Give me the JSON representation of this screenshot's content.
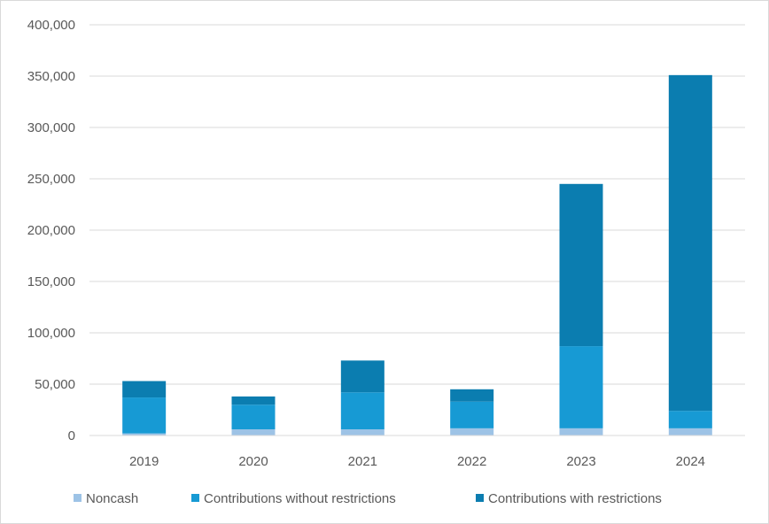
{
  "chart_data": {
    "type": "bar",
    "stacked": true,
    "categories": [
      "2019",
      "2020",
      "2021",
      "2022",
      "2023",
      "2024"
    ],
    "series": [
      {
        "name": "Noncash",
        "color": "#9dc3e6",
        "values": [
          2000,
          6000,
          6000,
          7000,
          7000,
          7000
        ]
      },
      {
        "name": "Contributions without restrictions",
        "color": "#179ad4",
        "values": [
          35000,
          24000,
          36000,
          26000,
          80000,
          17000
        ]
      },
      {
        "name": "Contributions with restrictions",
        "color": "#0b7db0",
        "values": [
          16000,
          8000,
          31000,
          12000,
          158000,
          327000
        ]
      }
    ],
    "ylim": [
      0,
      400000
    ],
    "yticks": [
      "0",
      "50,000",
      "100,000",
      "150,000",
      "200,000",
      "250,000",
      "300,000",
      "350,000",
      "400,000"
    ],
    "ytick_values": [
      0,
      50000,
      100000,
      150000,
      200000,
      250000,
      300000,
      350000,
      400000
    ],
    "grid": true,
    "legend_position": "bottom"
  }
}
